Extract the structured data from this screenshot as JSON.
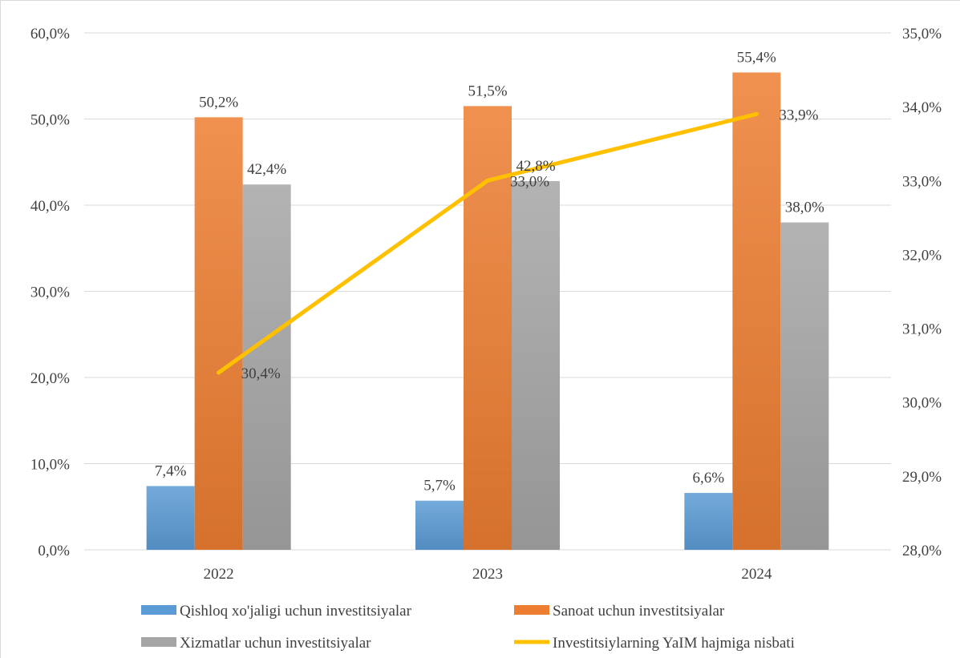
{
  "chart_data": {
    "type": "bar",
    "categories": [
      "2022",
      "2023",
      "2024"
    ],
    "series": [
      {
        "name": "Qishloq xo'jaligi uchun investitsiyalar",
        "type": "bar",
        "axis": "left",
        "color": "#5b9bd5",
        "values": [
          7.4,
          5.7,
          6.6
        ],
        "labels": [
          "7,4%",
          "5,7%",
          "6,6%"
        ]
      },
      {
        "name": "Sanoat uchun investitsiyalar",
        "type": "bar",
        "axis": "left",
        "color": "#ed7d31",
        "values": [
          50.2,
          51.5,
          55.4
        ],
        "labels": [
          "50,2%",
          "51,5%",
          "55,4%"
        ]
      },
      {
        "name": "Xizmatlar uchun investitsiyalar",
        "type": "bar",
        "axis": "left",
        "color": "#a5a5a5",
        "values": [
          42.4,
          42.8,
          38.0
        ],
        "labels": [
          "42,4%",
          "42,8%",
          "38,0%"
        ]
      },
      {
        "name": "Investitsiylarning  YaIM hajmiga nisbati",
        "type": "line",
        "axis": "right",
        "color": "#ffc000",
        "values": [
          30.4,
          33.0,
          33.9
        ],
        "labels": [
          "30,4%",
          "33,0%",
          "33,9%"
        ]
      }
    ],
    "y_left": {
      "range": [
        0,
        60
      ],
      "ticks": [
        "0,0%",
        "10,0%",
        "20,0%",
        "30,0%",
        "40,0%",
        "50,0%",
        "60,0%"
      ]
    },
    "y_right": {
      "range": [
        28,
        35
      ],
      "ticks": [
        "28,0%",
        "29,0%",
        "30,0%",
        "31,0%",
        "32,0%",
        "33,0%",
        "34,0%",
        "35,0%"
      ]
    },
    "grid": true,
    "legend_position": "bottom",
    "title": "",
    "xlabel": "",
    "ylabel": ""
  }
}
